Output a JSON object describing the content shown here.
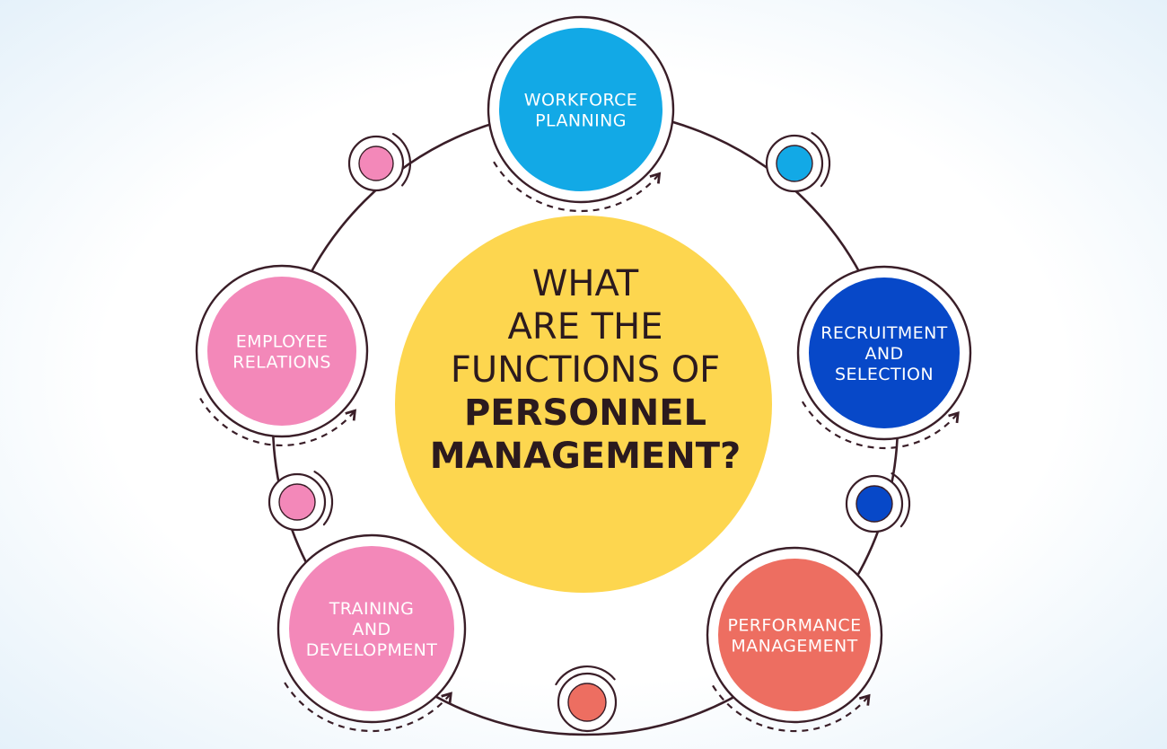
{
  "title": {
    "lines": [
      "WHAT",
      "ARE THE",
      "FUNCTIONS OF"
    ],
    "emphasis_lines": [
      "PERSONNEL",
      "MANAGEMENT?"
    ]
  },
  "functions": [
    {
      "id": "workforce-planning",
      "lines": [
        "WORKFORCE",
        "PLANNING"
      ],
      "color": "#12a9e6"
    },
    {
      "id": "recruitment-and-selection",
      "lines": [
        "RECRUITMENT",
        "AND",
        "SELECTION"
      ],
      "color": "#0748c8"
    },
    {
      "id": "performance-management",
      "lines": [
        "PERFORMANCE",
        "MANAGEMENT"
      ],
      "color": "#ed6e61"
    },
    {
      "id": "training-and-development",
      "lines": [
        "TRAINING",
        "AND",
        "DEVELOPMENT"
      ],
      "color": "#f388b9"
    },
    {
      "id": "employee-relations",
      "lines": [
        "EMPLOYEE",
        "RELATIONS"
      ],
      "color": "#f388b9"
    }
  ],
  "connector_dot_colors": {
    "workforce-to-recruitment": "#12a9e6",
    "recruitment-to-performance": "#0748c8",
    "performance-to-training": "#ed6e61",
    "training-to-employee": "#f388b9",
    "employee-to-workforce": "#f388b9"
  },
  "colors": {
    "center": "#fdd64f",
    "stroke": "#3a1e28",
    "background_center": "#ffffff",
    "background_edge": "#e1eff9"
  }
}
